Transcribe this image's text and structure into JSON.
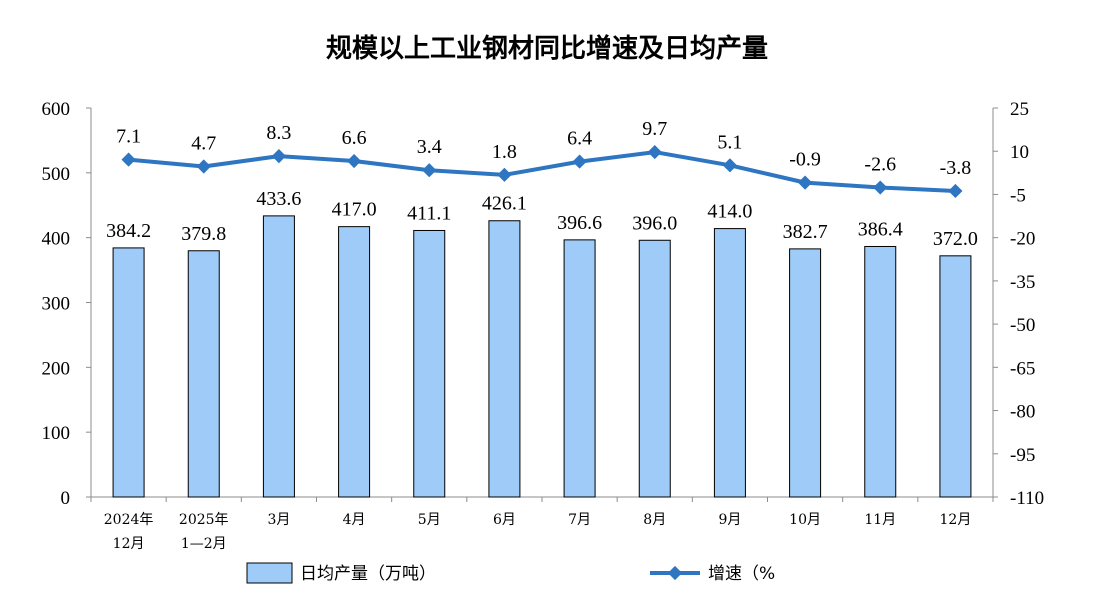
{
  "chart_data": {
    "type": "bar+line",
    "title": "规模以上工业钢材同比增速及日均产量",
    "categories": [
      [
        "2024年",
        "12月"
      ],
      [
        "2025年",
        "1—2月"
      ],
      [
        "3月"
      ],
      [
        "4月"
      ],
      [
        "5月"
      ],
      [
        "6月"
      ],
      [
        "7月"
      ],
      [
        "8月"
      ],
      [
        "9月"
      ],
      [
        "10月"
      ],
      [
        "11月"
      ],
      [
        "12月"
      ]
    ],
    "series": [
      {
        "name": "日均产量（万吨）",
        "type": "bar",
        "axis": "left",
        "color": "#9ecbf7",
        "values": [
          384.2,
          379.8,
          433.6,
          417.0,
          411.1,
          426.1,
          396.6,
          396.0,
          414.0,
          382.7,
          386.4,
          372.0
        ],
        "labels": [
          "384.2",
          "379.8",
          "433.6",
          "417.0",
          "411.1",
          "426.1",
          "396.6",
          "396.0",
          "414.0",
          "382.7",
          "386.4",
          "372.0"
        ]
      },
      {
        "name": "增速（%",
        "type": "line",
        "axis": "right",
        "color": "#2e75c2",
        "values": [
          7.1,
          4.7,
          8.3,
          6.6,
          3.4,
          1.8,
          6.4,
          9.7,
          5.1,
          -0.9,
          -2.6,
          -3.8
        ],
        "labels": [
          "7.1",
          "4.7",
          "8.3",
          "6.6",
          "3.4",
          "1.8",
          "6.4",
          "9.7",
          "5.1",
          "-0.9",
          "-2.6",
          "-3.8"
        ]
      }
    ],
    "y_left": {
      "ylim": [
        0,
        600
      ],
      "ticks": [
        0,
        100,
        200,
        300,
        400,
        500,
        600
      ]
    },
    "y_right": {
      "ylim": [
        -110,
        25
      ],
      "ticks": [
        25,
        10,
        -5,
        -20,
        -35,
        -50,
        -65,
        -80,
        -95,
        -110
      ]
    },
    "grid": false,
    "legend_position": "bottom"
  }
}
